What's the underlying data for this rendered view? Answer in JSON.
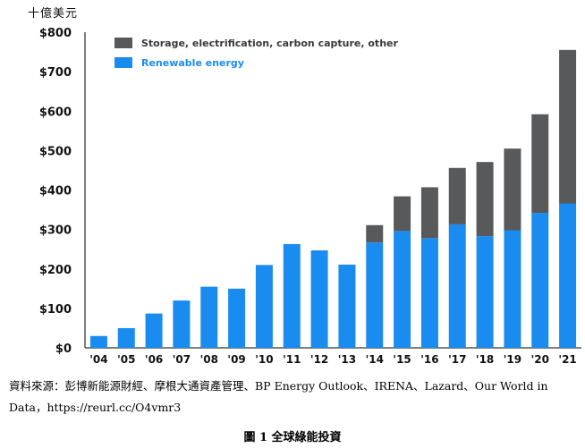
{
  "chart_data": {
    "type": "bar",
    "stacked": true,
    "unit_label": "十億美元",
    "categories": [
      "'04",
      "'05",
      "'06",
      "'07",
      "'08",
      "'09",
      "'10",
      "'11",
      "'12",
      "'13",
      "'14",
      "'15",
      "'16",
      "'17",
      "'18",
      "'19",
      "'20",
      "'21"
    ],
    "series": [
      {
        "name": "Renewable energy",
        "color": "#1a8cf0",
        "values": [
          30,
          50,
          87,
          120,
          155,
          150,
          210,
          263,
          247,
          211,
          267,
          296,
          278,
          313,
          283,
          298,
          342,
          366
        ]
      },
      {
        "name": "Storage, electrification, carbon capture, other",
        "color": "#58595b",
        "values": [
          0,
          0,
          0,
          0,
          0,
          0,
          0,
          0,
          0,
          0,
          44,
          88,
          129,
          143,
          188,
          207,
          250,
          389
        ]
      }
    ],
    "yticks": [
      "$0",
      "$100",
      "$200",
      "$300",
      "$400",
      "$500",
      "$600",
      "$700",
      "$800"
    ],
    "ylim": [
      0,
      800
    ],
    "grid": false,
    "legend_position": "top-left"
  },
  "source_text": "資料來源：彭博新能源財經、摩根大通資產管理、BP Energy Outlook、IRENA、Lazard、Our World in Data，https://reurl.cc/O4vmr3",
  "caption": "圖 1  全球綠能投資"
}
